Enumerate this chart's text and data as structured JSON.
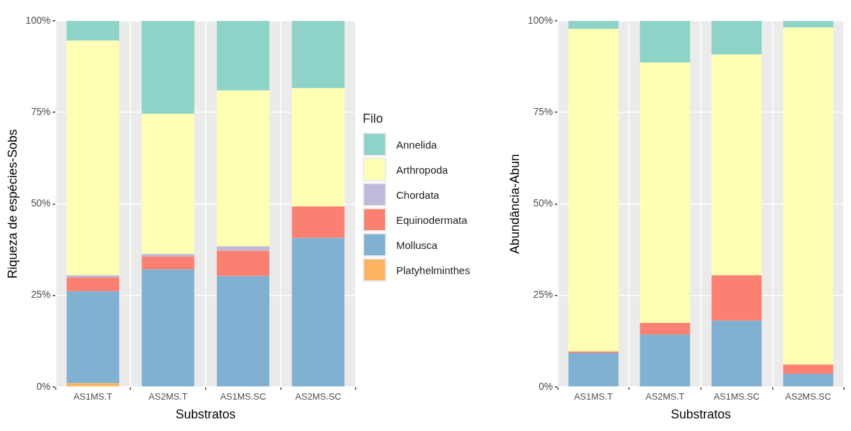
{
  "chart_data": [
    {
      "type": "bar",
      "stacked": true,
      "xlabel": "Substratos",
      "ylabel": "Riqueza de espécies-Sobs",
      "legend_title": "Filo",
      "legend": "right",
      "grid": true,
      "categories": [
        "AS1MS.T",
        "AS2MS.T",
        "AS1MS.SC",
        "AS2MS.SC"
      ],
      "ylim": [
        0,
        100
      ],
      "yticks": [
        {
          "value": 0,
          "label": "0%"
        },
        {
          "value": 25,
          "label": "25%"
        },
        {
          "value": 50,
          "label": "50%"
        },
        {
          "value": 75,
          "label": "75%"
        },
        {
          "value": 100,
          "label": "100%"
        }
      ],
      "series": [
        {
          "name": "Platyhelminthes",
          "color": "#fdb462",
          "values": [
            1.0,
            0,
            0,
            0
          ]
        },
        {
          "name": "Mollusca",
          "color": "#80b1d3",
          "values": [
            25.1,
            32.1,
            30.3,
            40.7
          ]
        },
        {
          "name": "Equinodermata",
          "color": "#fb8072",
          "values": [
            3.8,
            3.5,
            6.9,
            8.6
          ]
        },
        {
          "name": "Chordata",
          "color": "#bebada",
          "values": [
            0.6,
            0.7,
            1.2,
            0
          ]
        },
        {
          "name": "Arthropoda",
          "color": "#ffffb3",
          "values": [
            64.1,
            38.3,
            42.6,
            32.3
          ]
        },
        {
          "name": "Annelida",
          "color": "#8dd3c7",
          "values": [
            5.4,
            25.4,
            19.0,
            18.4
          ]
        }
      ]
    },
    {
      "type": "bar",
      "stacked": true,
      "xlabel": "Substratos",
      "ylabel": "Abundância-Abun",
      "grid": true,
      "categories": [
        "AS1MS.T",
        "AS2MS.T",
        "AS1MS.SC",
        "AS2MS.SC"
      ],
      "ylim": [
        0,
        100
      ],
      "yticks": [
        {
          "value": 0,
          "label": "0%"
        },
        {
          "value": 25,
          "label": "25%"
        },
        {
          "value": 50,
          "label": "50%"
        },
        {
          "value": 75,
          "label": "75%"
        },
        {
          "value": 100,
          "label": "100%"
        }
      ],
      "series": [
        {
          "color": "#80b1d3",
          "values": [
            9.3,
            14.3,
            18.1,
            3.6
          ]
        },
        {
          "color": "#fb8072",
          "values": [
            0.4,
            3.2,
            12.4,
            2.5
          ]
        },
        {
          "color": "#ffffb3",
          "values": [
            88.1,
            71.1,
            60.3,
            92.1
          ]
        },
        {
          "color": "#8dd3c7",
          "values": [
            2.2,
            11.4,
            9.2,
            1.8
          ]
        }
      ]
    }
  ]
}
